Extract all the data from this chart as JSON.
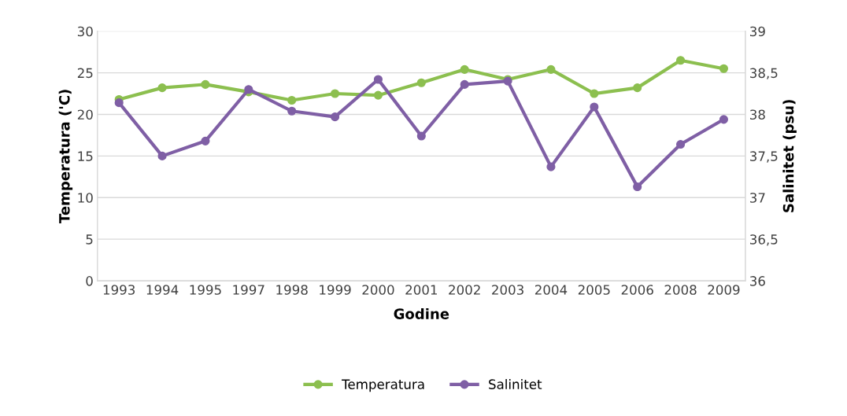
{
  "chart_data": {
    "type": "line",
    "xlabel": "Godine",
    "ylabel": "Temperatura ('C)",
    "y2label": "Salinitet (psu)",
    "categories": [
      "1993",
      "1994",
      "1995",
      "1997",
      "1998",
      "1999",
      "2000",
      "2001",
      "2002",
      "2003",
      "2004",
      "2005",
      "2006",
      "2008",
      "2009"
    ],
    "series": [
      {
        "name": "Temperatura",
        "color": "#8cbf4f",
        "values": [
          21.8,
          23.2,
          23.6,
          22.7,
          21.7,
          22.5,
          22.3,
          23.8,
          25.4,
          24.2,
          25.4,
          22.5,
          23.2,
          26.5,
          25.5
        ]
      },
      {
        "name": "Salinitet",
        "color": "#7f5fa5",
        "axis": "y2",
        "values": [
          38.14,
          37.5,
          37.68,
          38.3,
          38.04,
          37.97,
          38.42,
          37.74,
          38.36,
          38.4,
          37.37,
          38.09,
          37.13,
          37.64,
          37.94
        ]
      }
    ],
    "ylim": [
      0,
      30
    ],
    "yticks": [
      0,
      5,
      10,
      15,
      20,
      25,
      30
    ],
    "y2lim": [
      36,
      39
    ],
    "y2ticks": [
      {
        "value": 36,
        "label": "36"
      },
      {
        "value": 36.5,
        "label": "36,5"
      },
      {
        "value": 37,
        "label": "37"
      },
      {
        "value": 37.5,
        "label": "37,5"
      },
      {
        "value": 38,
        "label": "38"
      },
      {
        "value": 38.5,
        "label": "38,5"
      },
      {
        "value": 39,
        "label": "39"
      }
    ],
    "grid": "y",
    "legend": "bottom",
    "marker": "circle",
    "line_style": "solid"
  }
}
